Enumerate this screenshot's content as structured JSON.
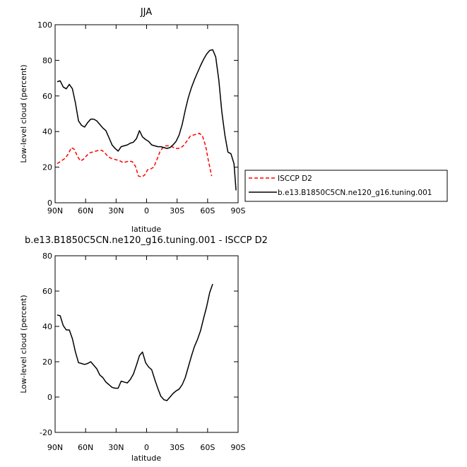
{
  "chart_data": [
    {
      "type": "line",
      "title": "JJA",
      "xlabel": "latitude",
      "ylabel": "Low-level cloud (percent)",
      "xlim": [
        90,
        -90
      ],
      "ylim": [
        0,
        100
      ],
      "x_ticks": [
        90,
        60,
        30,
        0,
        -30,
        -60,
        -90
      ],
      "x_tick_labels": [
        "90N",
        "60N",
        "30N",
        "0",
        "30S",
        "60S",
        "90S"
      ],
      "y_ticks": [
        0,
        20,
        40,
        60,
        80,
        100
      ],
      "y_tick_labels": [
        "0",
        "20",
        "40",
        "60",
        "80",
        "100"
      ],
      "legend_position": "right",
      "series": [
        {
          "name": "ISCCP D2",
          "color": "#ff0000",
          "dash": "dashed",
          "x": [
            88,
            84,
            80,
            77,
            74,
            71,
            68,
            65,
            62,
            59,
            56,
            53,
            50,
            47,
            44,
            41,
            38,
            35,
            32,
            29,
            26,
            23,
            20,
            17,
            14,
            11,
            8,
            5,
            2,
            -1,
            -4,
            -7,
            -10,
            -13,
            -16,
            -19,
            -22,
            -25,
            -28,
            -31,
            -34,
            -37,
            -40,
            -43,
            -46,
            -49,
            -52,
            -55,
            -58,
            -61,
            -64
          ],
          "y": [
            22,
            23.5,
            25,
            27.5,
            31,
            30,
            26,
            23.5,
            24.5,
            26.5,
            28,
            28.5,
            29,
            29.5,
            29.5,
            28,
            26,
            25,
            24.5,
            24,
            23.5,
            22.5,
            23,
            23.5,
            23,
            20.5,
            15,
            14.5,
            15.5,
            18.5,
            19,
            20,
            24,
            28.5,
            31,
            32,
            32,
            31.5,
            30.5,
            30.5,
            31,
            32.5,
            35,
            37.5,
            38,
            38.5,
            39,
            37.5,
            32,
            23,
            15
          ]
        },
        {
          "name": "b.e13.B1850C5CN.ne120_g16.tuning.001",
          "color": "#000000",
          "dash": "solid",
          "x": [
            88,
            85,
            82,
            79,
            76,
            73,
            70,
            67,
            64,
            61,
            58,
            55,
            52,
            49,
            46,
            43,
            40,
            37,
            34,
            31,
            28,
            25,
            22,
            19,
            16,
            13,
            10,
            7,
            4,
            1,
            -2,
            -5,
            -8,
            -11,
            -14,
            -17,
            -20,
            -23,
            -26,
            -29,
            -32,
            -35,
            -38,
            -41,
            -44,
            -47,
            -50,
            -53,
            -56,
            -59,
            -62,
            -65,
            -68,
            -71,
            -74,
            -77,
            -80,
            -83,
            -86,
            -88
          ],
          "y": [
            68,
            68.5,
            65,
            64,
            66.5,
            64,
            56,
            46,
            43.5,
            42.5,
            45,
            47,
            47,
            46,
            44,
            42,
            40.5,
            36.5,
            32.5,
            30.5,
            29,
            31.5,
            32,
            32.5,
            33.5,
            34,
            36,
            40.5,
            37,
            35.5,
            34.5,
            32.5,
            32,
            31.5,
            31.5,
            31,
            30.5,
            31,
            32.5,
            34.5,
            38,
            44,
            52,
            59,
            64.5,
            69,
            73,
            77,
            80.5,
            83.5,
            85.5,
            86,
            82,
            69,
            51,
            38,
            28.5,
            27.5,
            22,
            7
          ]
        }
      ]
    },
    {
      "type": "line",
      "title": "b.e13.B1850C5CN.ne120_g16.tuning.001 - ISCCP D2",
      "xlabel": "latitude",
      "ylabel": "Low-level cloud (percent)",
      "xlim": [
        90,
        -90
      ],
      "ylim": [
        -20,
        80
      ],
      "x_ticks": [
        90,
        60,
        30,
        0,
        -30,
        -60,
        -90
      ],
      "x_tick_labels": [
        "90N",
        "60N",
        "30N",
        "0",
        "30S",
        "60S",
        "90S"
      ],
      "y_ticks": [
        -20,
        0,
        20,
        40,
        60,
        80
      ],
      "y_tick_labels": [
        "-20",
        "0",
        "20",
        "40",
        "60",
        "80"
      ],
      "series": [
        {
          "color": "#000000",
          "dash": "solid",
          "x": [
            88,
            85,
            82,
            79,
            76,
            73,
            70,
            67,
            64,
            61,
            58,
            55,
            52,
            49,
            46,
            43,
            40,
            37,
            34,
            31,
            28,
            25,
            22,
            19,
            16,
            13,
            10,
            7,
            4,
            1,
            -2,
            -5,
            -8,
            -11,
            -14,
            -17,
            -20,
            -23,
            -26,
            -29,
            -32,
            -35,
            -38,
            -41,
            -44,
            -47,
            -50,
            -53,
            -56,
            -59,
            -62,
            -65
          ],
          "y": [
            46.5,
            46,
            40.5,
            38,
            38,
            33,
            25.5,
            19.5,
            19,
            18.5,
            19,
            20,
            18,
            16,
            12.5,
            11,
            8.5,
            7,
            5.5,
            5,
            5,
            9,
            8.5,
            8,
            10,
            13,
            18,
            23.5,
            25.5,
            19.5,
            17,
            15.5,
            10,
            5,
            0.5,
            -1.5,
            -2,
            0,
            2,
            3.5,
            4.5,
            7,
            11,
            17,
            23,
            28.5,
            32.5,
            37.5,
            44.5,
            51,
            59,
            64
          ]
        }
      ]
    }
  ]
}
